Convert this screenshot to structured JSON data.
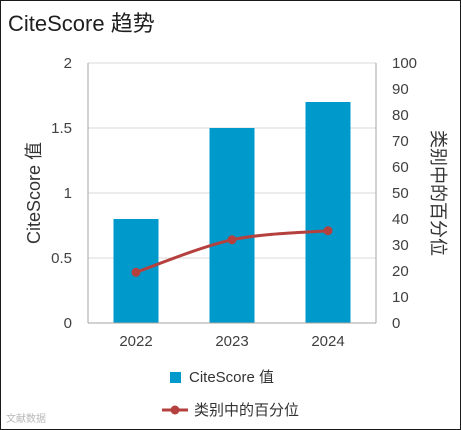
{
  "chart_data": {
    "type": "bar",
    "title": "CiteScore 趋势",
    "categories": [
      "2022",
      "2023",
      "2024"
    ],
    "series": [
      {
        "name": "CiteScore 值",
        "type": "bar",
        "axis": "left",
        "color": "#0099cc",
        "values": [
          0.8,
          1.5,
          1.7
        ]
      },
      {
        "name": "类别中的百分位",
        "type": "line",
        "axis": "right",
        "color": "#b5413f",
        "values": [
          19.5,
          32,
          35.5
        ]
      }
    ],
    "ylabel": "CiteScore 值",
    "ylabel_right": "类别中的百分位",
    "ylim": [
      0,
      2
    ],
    "yticks": [
      "0",
      "0.5",
      "1",
      "1.5",
      "2"
    ],
    "ylim_right": [
      0,
      100
    ],
    "yticks_right": [
      "0",
      "10",
      "20",
      "30",
      "40",
      "50",
      "60",
      "70",
      "80",
      "90",
      "100"
    ],
    "grid": true,
    "legend_position": "bottom"
  },
  "watermark": "文献数据"
}
